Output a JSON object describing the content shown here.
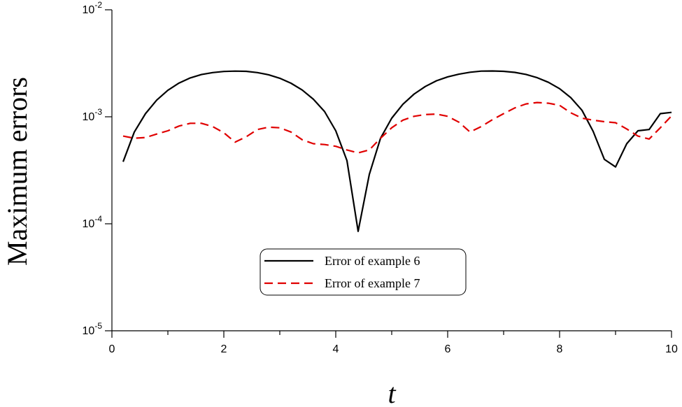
{
  "chart_data": {
    "type": "line",
    "xlabel": "t",
    "ylabel": "Maximum errors",
    "xlim": [
      0,
      10
    ],
    "ylim": [
      1e-05,
      0.01
    ],
    "yscale": "log",
    "xticks": [
      0,
      2,
      4,
      6,
      8,
      10
    ],
    "xtick_labels": [
      "0",
      "2",
      "4",
      "6",
      "8",
      "10"
    ],
    "yticks": [
      1e-05,
      0.0001,
      0.001,
      0.01
    ],
    "ytick_labels": [
      {
        "base": "10",
        "exp": "-5"
      },
      {
        "base": "10",
        "exp": "-4"
      },
      {
        "base": "10",
        "exp": "-3"
      },
      {
        "base": "10",
        "exp": "-2"
      }
    ],
    "grid": false,
    "legend_position": "center-bottom",
    "series": [
      {
        "name": "Error of example 6",
        "color": "#000000",
        "dash": "solid",
        "x": [
          0.2,
          0.4,
          0.6,
          0.8,
          1.0,
          1.2,
          1.4,
          1.6,
          1.8,
          2.0,
          2.2,
          2.4,
          2.6,
          2.8,
          3.0,
          3.2,
          3.4,
          3.6,
          3.8,
          4.0,
          4.2,
          4.4,
          4.6,
          4.8,
          5.0,
          5.2,
          5.4,
          5.6,
          5.8,
          6.0,
          6.2,
          6.4,
          6.6,
          6.8,
          7.0,
          7.2,
          7.4,
          7.6,
          7.8,
          8.0,
          8.2,
          8.4,
          8.6,
          8.8,
          9.0,
          9.2,
          9.4,
          9.6,
          9.8,
          10.0
        ],
        "y": [
          0.00038,
          0.00072,
          0.00107,
          0.00143,
          0.00177,
          0.00207,
          0.00231,
          0.00248,
          0.00259,
          0.00265,
          0.00267,
          0.00266,
          0.00259,
          0.00247,
          0.00229,
          0.00206,
          0.00178,
          0.00146,
          0.00112,
          0.00074,
          0.00039,
          8.5e-05,
          0.00029,
          0.00063,
          0.00097,
          0.00131,
          0.00163,
          0.00192,
          0.00217,
          0.00236,
          0.0025,
          0.00261,
          0.00267,
          0.00268,
          0.00266,
          0.0026,
          0.00249,
          0.00232,
          0.0021,
          0.00183,
          0.00151,
          0.00115,
          0.00073,
          0.0004,
          0.00034,
          0.00056,
          0.00074,
          0.00076,
          0.00107,
          0.0011
        ]
      },
      {
        "name": "Error of example 7",
        "color": "#e00000",
        "dash": "dashed",
        "x": [
          0.2,
          0.4,
          0.6,
          0.8,
          1.0,
          1.2,
          1.4,
          1.6,
          1.8,
          2.0,
          2.2,
          2.4,
          2.6,
          2.8,
          3.0,
          3.2,
          3.4,
          3.6,
          3.8,
          4.0,
          4.2,
          4.4,
          4.6,
          4.8,
          5.0,
          5.2,
          5.4,
          5.6,
          5.8,
          6.0,
          6.2,
          6.4,
          6.6,
          6.8,
          7.0,
          7.2,
          7.4,
          7.6,
          7.8,
          8.0,
          8.2,
          8.4,
          8.6,
          8.8,
          9.0,
          9.2,
          9.4,
          9.6,
          9.8,
          10.0
        ],
        "y": [
          0.00066,
          0.00063,
          0.00064,
          0.00069,
          0.00074,
          0.00082,
          0.00087,
          0.00087,
          0.00081,
          0.00071,
          0.00058,
          0.00065,
          0.00076,
          0.0008,
          0.00079,
          0.00072,
          0.00061,
          0.00056,
          0.00055,
          0.00053,
          0.00049,
          0.00046,
          0.00049,
          0.00063,
          0.00079,
          0.00093,
          0.00101,
          0.00105,
          0.00106,
          0.00101,
          0.00089,
          0.00072,
          0.00081,
          0.00094,
          0.00107,
          0.00121,
          0.00132,
          0.00136,
          0.00134,
          0.00128,
          0.00109,
          0.00097,
          0.00093,
          0.0009,
          0.00088,
          0.00077,
          0.00066,
          0.00062,
          0.00079,
          0.00102
        ]
      }
    ]
  }
}
